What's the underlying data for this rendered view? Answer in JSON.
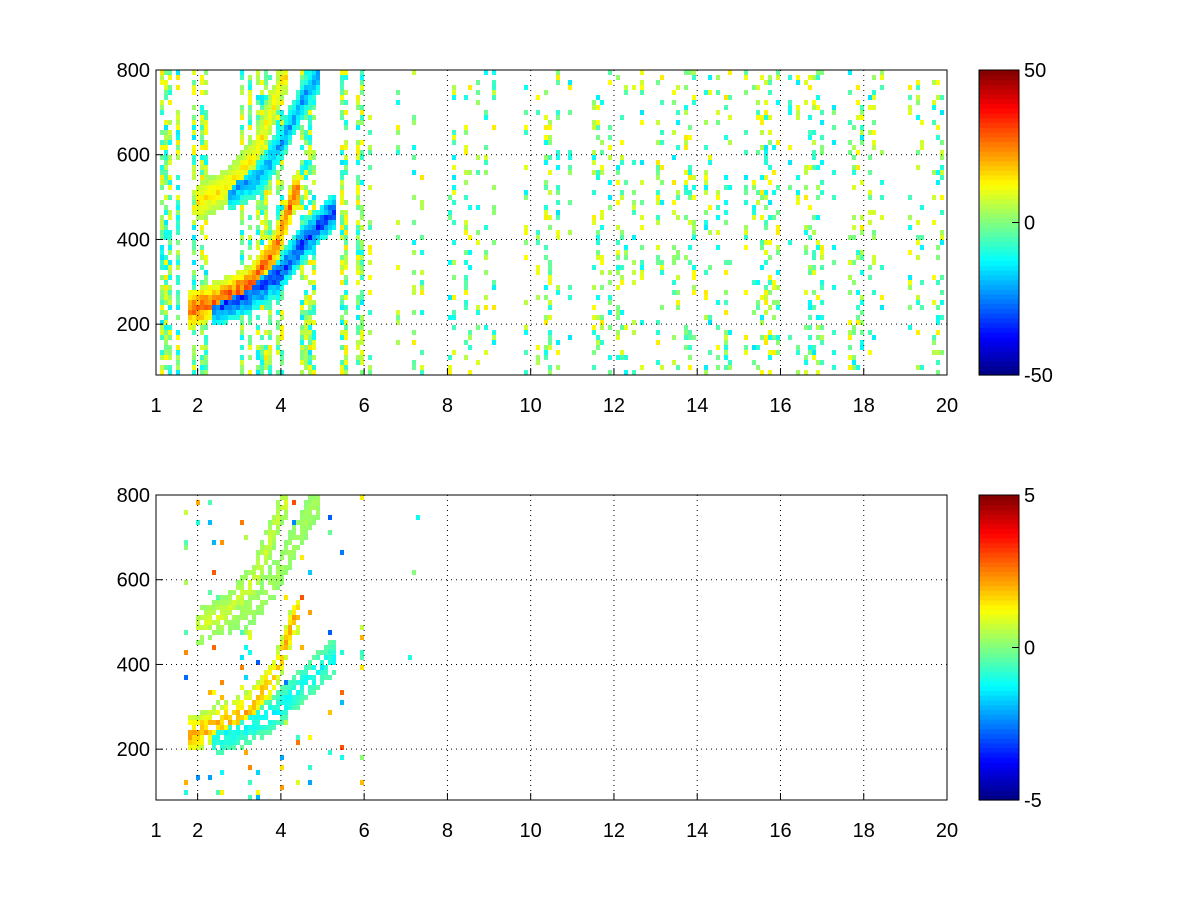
{
  "figure": {
    "background": "#ffffff",
    "colormap": "jet"
  },
  "chart_data": [
    {
      "type": "heatmap",
      "title": "",
      "xlabel": "",
      "ylabel": "",
      "xlim": [
        1,
        20
      ],
      "ylim": [
        80,
        800
      ],
      "xticks": [
        1,
        2,
        4,
        6,
        8,
        10,
        12,
        14,
        16,
        18,
        20
      ],
      "yticks": [
        200,
        400,
        600,
        800
      ],
      "grid": true,
      "colorbar": {
        "range": [
          -50,
          50
        ],
        "ticks": [
          -50,
          0,
          50
        ]
      },
      "features": [
        {
          "x": [
            1.8,
            2.5,
            3.2,
            3.8,
            4.3
          ],
          "y": [
            240,
            265,
            300,
            380,
            520
          ],
          "value": 35
        },
        {
          "x": [
            2.4,
            3.2,
            3.9,
            4.5,
            5.2
          ],
          "y": [
            245,
            275,
            320,
            400,
            470
          ],
          "value": -40
        },
        {
          "x": [
            2.0,
            2.7,
            3.3,
            3.7,
            4.0
          ],
          "y": [
            495,
            530,
            600,
            700,
            790
          ],
          "value": 18
        },
        {
          "x": [
            2.8,
            3.5,
            4.0,
            4.4,
            4.8
          ],
          "y": [
            520,
            560,
            640,
            720,
            790
          ],
          "value": -28
        }
      ],
      "noise": {
        "xrange": [
          1,
          20
        ],
        "value_range": [
          -15,
          15
        ]
      }
    },
    {
      "type": "heatmap",
      "title": "",
      "xlabel": "",
      "ylabel": "",
      "xlim": [
        1,
        20
      ],
      "ylim": [
        80,
        800
      ],
      "xticks": [
        1,
        2,
        4,
        6,
        8,
        10,
        12,
        14,
        16,
        18,
        20
      ],
      "yticks": [
        200,
        400,
        600,
        800
      ],
      "grid": true,
      "colorbar": {
        "range": [
          -5,
          5
        ],
        "ticks": [
          -5,
          0,
          5
        ]
      },
      "features": [
        {
          "x": [
            1.8,
            2.5,
            3.2,
            3.8,
            4.3
          ],
          "y": [
            240,
            265,
            300,
            380,
            520
          ],
          "value": 2.5
        },
        {
          "x": [
            2.4,
            3.2,
            3.9,
            4.5,
            5.2
          ],
          "y": [
            230,
            260,
            300,
            360,
            420
          ],
          "value": -1.5
        },
        {
          "x": [
            2.0,
            2.7,
            3.3,
            3.7,
            4.0
          ],
          "y": [
            495,
            530,
            600,
            700,
            790
          ],
          "value": 1.0
        },
        {
          "x": [
            2.8,
            3.5,
            4.0,
            4.4,
            4.8
          ],
          "y": [
            520,
            560,
            640,
            720,
            790
          ],
          "value": 0.5
        }
      ],
      "noise": {
        "xrange": [
          1.6,
          7.4
        ],
        "value_range": [
          -3,
          3
        ]
      }
    }
  ]
}
